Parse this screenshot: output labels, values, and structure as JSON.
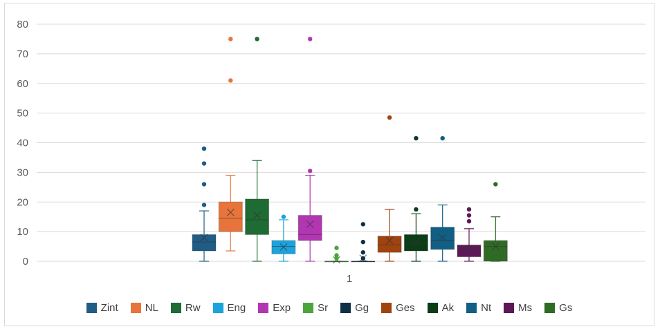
{
  "chart_data": {
    "type": "box",
    "title": "",
    "xlabel": "",
    "ylabel": "",
    "ylim": [
      0,
      80
    ],
    "yticks": [
      0,
      10,
      20,
      30,
      40,
      50,
      60,
      70,
      80
    ],
    "categories": [
      "1"
    ],
    "grid": true,
    "legend_position": "bottom",
    "series": [
      {
        "name": "Zint",
        "color": "#1f5c86",
        "min": 0,
        "q1": 3.5,
        "median": 6.5,
        "q3": 9,
        "max": 17,
        "mean": 8,
        "outliers": [
          19,
          26,
          33,
          38
        ]
      },
      {
        "name": "NL",
        "color": "#e8743b",
        "min": 3.5,
        "q1": 10,
        "median": 14.5,
        "q3": 20,
        "max": 29,
        "mean": 16.5,
        "outliers": [
          61,
          75
        ]
      },
      {
        "name": "Rw",
        "color": "#1e6b33",
        "min": 0,
        "q1": 9,
        "median": 14,
        "q3": 21,
        "max": 34,
        "mean": 15.5,
        "outliers": [
          75
        ]
      },
      {
        "name": "Eng",
        "color": "#1aa3dd",
        "min": 0,
        "q1": 2.5,
        "median": 5,
        "q3": 7,
        "max": 14,
        "mean": 4.8,
        "outliers": [
          15
        ]
      },
      {
        "name": "Exp",
        "color": "#b236b2",
        "min": 0,
        "q1": 7,
        "median": 9,
        "q3": 15.5,
        "max": 29,
        "mean": 12.5,
        "outliers": [
          30.5,
          75
        ]
      },
      {
        "name": "Sr",
        "color": "#4aa53b",
        "min": 0,
        "q1": 0,
        "median": 0,
        "q3": 0,
        "max": 0,
        "mean": 0.5,
        "outliers": [
          1,
          2,
          4.5
        ]
      },
      {
        "name": "Gg",
        "color": "#0f2f47",
        "min": 0,
        "q1": 0,
        "median": 0,
        "q3": 0,
        "max": 0,
        "mean": 1,
        "outliers": [
          1,
          3,
          6.5,
          12.5
        ]
      },
      {
        "name": "Ges",
        "color": "#a0440f",
        "min": 0,
        "q1": 3,
        "median": 5.5,
        "q3": 8.5,
        "max": 17.5,
        "mean": 7,
        "outliers": [
          48.5
        ]
      },
      {
        "name": "Ak",
        "color": "#0b3d17",
        "min": 0,
        "q1": 3.5,
        "median": 6,
        "q3": 9,
        "max": 16,
        "mean": 6.5,
        "outliers": [
          17.5,
          41.5
        ]
      },
      {
        "name": "Nt",
        "color": "#115f84",
        "min": 0,
        "q1": 4,
        "median": 7,
        "q3": 11.5,
        "max": 19,
        "mean": 8,
        "outliers": [
          41.5
        ]
      },
      {
        "name": "Ms",
        "color": "#5c1857",
        "min": 0,
        "q1": 1.5,
        "median": 4,
        "q3": 5.5,
        "max": 11,
        "mean": 4,
        "outliers": [
          13.5,
          15.5,
          17.5
        ]
      },
      {
        "name": "Gs",
        "color": "#2f6b25",
        "min": 0,
        "q1": 0,
        "median": 5,
        "q3": 7,
        "max": 15,
        "mean": 5,
        "outliers": [
          26
        ]
      }
    ]
  }
}
